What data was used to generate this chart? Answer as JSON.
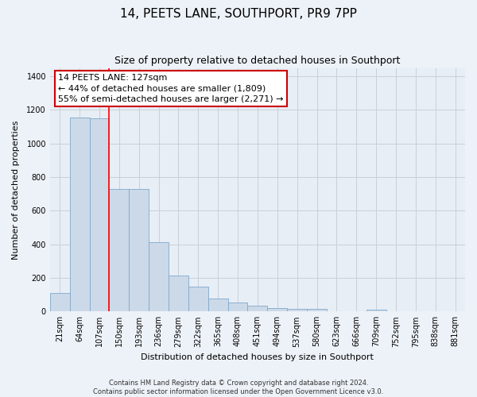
{
  "title": "14, PEETS LANE, SOUTHPORT, PR9 7PP",
  "subtitle": "Size of property relative to detached houses in Southport",
  "xlabel": "Distribution of detached houses by size in Southport",
  "ylabel": "Number of detached properties",
  "bar_labels": [
    "21sqm",
    "64sqm",
    "107sqm",
    "150sqm",
    "193sqm",
    "236sqm",
    "279sqm",
    "322sqm",
    "365sqm",
    "408sqm",
    "451sqm",
    "494sqm",
    "537sqm",
    "580sqm",
    "623sqm",
    "666sqm",
    "709sqm",
    "752sqm",
    "795sqm",
    "838sqm",
    "881sqm"
  ],
  "bar_values": [
    110,
    1155,
    1150,
    730,
    730,
    415,
    215,
    150,
    75,
    55,
    35,
    20,
    15,
    15,
    0,
    0,
    12,
    0,
    0,
    0,
    0
  ],
  "bar_color": "#ccd9e8",
  "bar_edge_color": "#7fa8cc",
  "red_line_index": 2,
  "ylim": [
    0,
    1450
  ],
  "yticks": [
    0,
    200,
    400,
    600,
    800,
    1000,
    1200,
    1400
  ],
  "annotation_title": "14 PEETS LANE: 127sqm",
  "annotation_line1": "← 44% of detached houses are smaller (1,809)",
  "annotation_line2": "55% of semi-detached houses are larger (2,271) →",
  "annotation_box_facecolor": "#ffffff",
  "annotation_box_edgecolor": "#cc0000",
  "footer_line1": "Contains HM Land Registry data © Crown copyright and database right 2024.",
  "footer_line2": "Contains public sector information licensed under the Open Government Licence v3.0.",
  "fig_facecolor": "#edf2f8",
  "plot_facecolor": "#e8eef6",
  "grid_color": "#c8d0d8",
  "title_fontsize": 11,
  "subtitle_fontsize": 9,
  "ylabel_fontsize": 8,
  "xlabel_fontsize": 8,
  "tick_fontsize": 7,
  "annotation_fontsize": 8,
  "footer_fontsize": 6
}
